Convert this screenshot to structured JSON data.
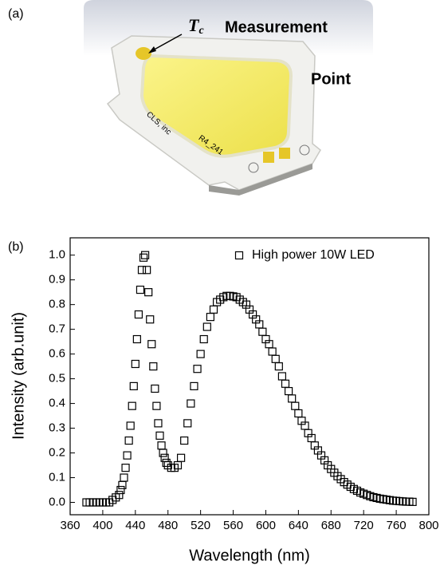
{
  "panel_labels": [
    "(a)",
    "(b)"
  ],
  "photo": {
    "tc_symbol": "T",
    "tc_subscript": "c",
    "label_line1": "Measurement",
    "label_line2": "Point",
    "chip_text1": "CLS, inc",
    "chip_text2": "R4_241"
  },
  "chart_data": {
    "type": "scatter",
    "xlabel": "Wavelength (nm)",
    "ylabel": "Intensity (arb.unit)",
    "xlim": [
      360,
      800
    ],
    "ylim": [
      -0.05,
      1.07
    ],
    "xticks": [
      360,
      400,
      440,
      480,
      520,
      560,
      600,
      640,
      680,
      720,
      760,
      800
    ],
    "yticks": [
      {
        "value": 0,
        "label": "0.0"
      },
      0.1,
      0.2,
      0.3,
      0.4,
      0.5,
      0.6,
      0.7,
      0.8,
      0.9,
      {
        "value": 1,
        "label": "1.0"
      }
    ],
    "legend": "upper right",
    "series": [
      {
        "name": "High power 10W LED",
        "color": "#000000",
        "x": [
          380,
          384,
          388,
          392,
          396,
          400,
          404,
          408,
          412,
          416,
          420,
          422,
          424,
          426,
          428,
          430,
          432,
          434,
          436,
          438,
          440,
          442,
          444,
          446,
          448,
          450,
          452,
          454,
          456,
          458,
          460,
          462,
          464,
          466,
          468,
          470,
          472,
          474,
          476,
          478,
          480,
          484,
          488,
          492,
          496,
          500,
          504,
          508,
          512,
          516,
          520,
          524,
          528,
          532,
          536,
          540,
          544,
          548,
          552,
          556,
          560,
          564,
          568,
          572,
          576,
          580,
          584,
          588,
          592,
          596,
          600,
          604,
          608,
          612,
          616,
          620,
          624,
          628,
          632,
          636,
          640,
          644,
          648,
          652,
          656,
          660,
          664,
          668,
          672,
          676,
          680,
          684,
          688,
          692,
          696,
          700,
          704,
          708,
          712,
          716,
          720,
          724,
          728,
          732,
          736,
          740,
          744,
          748,
          752,
          756,
          760,
          764,
          768,
          772,
          776,
          780
        ],
        "y": [
          0,
          0,
          0,
          0,
          0,
          0,
          0,
          0,
          0.01,
          0.02,
          0.03,
          0.05,
          0.07,
          0.1,
          0.14,
          0.19,
          0.25,
          0.31,
          0.39,
          0.47,
          0.56,
          0.66,
          0.76,
          0.86,
          0.94,
          0.99,
          1.0,
          0.94,
          0.85,
          0.74,
          0.64,
          0.55,
          0.46,
          0.39,
          0.32,
          0.27,
          0.23,
          0.2,
          0.18,
          0.16,
          0.15,
          0.14,
          0.14,
          0.15,
          0.18,
          0.25,
          0.32,
          0.4,
          0.47,
          0.54,
          0.6,
          0.66,
          0.71,
          0.75,
          0.78,
          0.81,
          0.82,
          0.83,
          0.835,
          0.835,
          0.833,
          0.83,
          0.82,
          0.81,
          0.8,
          0.78,
          0.76,
          0.74,
          0.72,
          0.69,
          0.66,
          0.64,
          0.61,
          0.58,
          0.55,
          0.51,
          0.48,
          0.45,
          0.42,
          0.39,
          0.36,
          0.33,
          0.31,
          0.28,
          0.26,
          0.23,
          0.21,
          0.19,
          0.17,
          0.15,
          0.135,
          0.12,
          0.106,
          0.094,
          0.082,
          0.072,
          0.063,
          0.054,
          0.047,
          0.04,
          0.035,
          0.03,
          0.025,
          0.021,
          0.018,
          0.015,
          0.013,
          0.011,
          0.009,
          0.007,
          0.006,
          0.005,
          0.004,
          0.003,
          0.003,
          0.002
        ]
      }
    ]
  }
}
